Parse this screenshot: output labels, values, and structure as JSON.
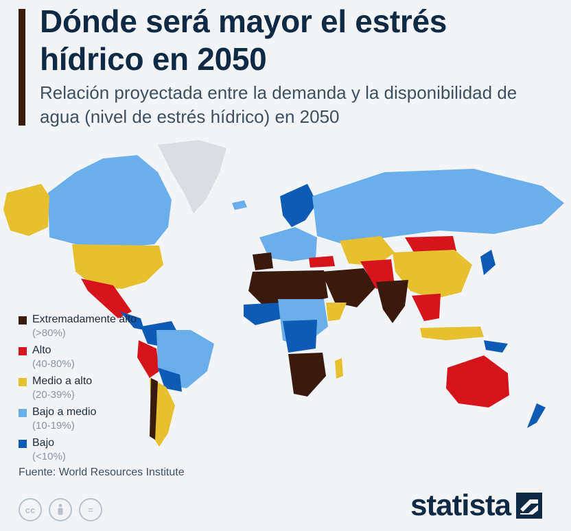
{
  "header": {
    "title": "Dónde será mayor el estrés hídrico en 2050",
    "subtitle": "Relación proyectada entre la demanda y la disponibilidad de agua (nivel de estrés hídrico) en 2050"
  },
  "colors": {
    "extremely_high": "#3b1a0e",
    "high": "#d5141c",
    "medium_high": "#e7c02f",
    "low_medium": "#6aafec",
    "low": "#0d5bb5",
    "no_data": "#dadde1",
    "title": "#0f2a45",
    "accent_bar": "#3b1a0e"
  },
  "legend": {
    "items": [
      {
        "label": "Extremadamente alto",
        "range": "(>80%)",
        "color": "#3b1a0e"
      },
      {
        "label": "Alto",
        "range": "(40-80%)",
        "color": "#d5141c"
      },
      {
        "label": "Medio a alto",
        "range": "(20-39%)",
        "color": "#e7c02f"
      },
      {
        "label": "Bajo a medio",
        "range": "(10-19%)",
        "color": "#6aafec"
      },
      {
        "label": "Bajo",
        "range": "(<10%)",
        "color": "#0d5bb5"
      }
    ]
  },
  "footer": {
    "source": "Fuente: World Resources Institute",
    "brand": "statista",
    "icons": [
      "cc-icon",
      "by-person-icon",
      "equals-icon"
    ],
    "icon_glyphs": [
      "cc",
      "",
      "="
    ]
  }
}
